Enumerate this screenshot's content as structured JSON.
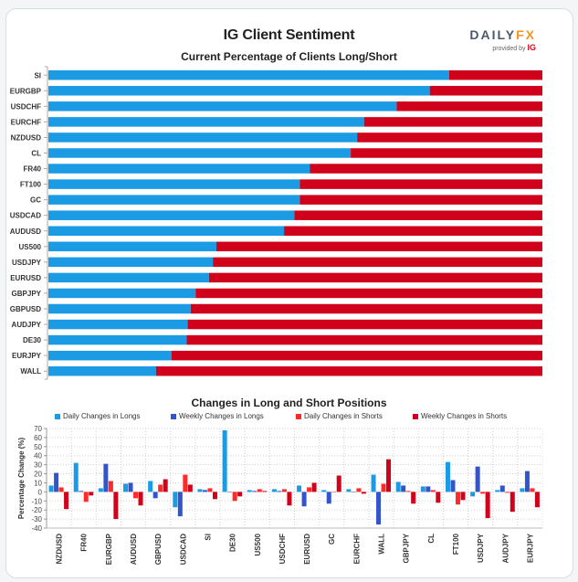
{
  "header": {
    "title": "IG Client Sentiment",
    "logo_brand_left": "DAILY",
    "logo_brand_right": "FX",
    "logo_sub": "provided by",
    "logo_sub_brand": "IG"
  },
  "colors": {
    "long": "#1b9be3",
    "short": "#d0021b",
    "daily_longs": "#1b9be3",
    "weekly_longs": "#3355cc",
    "daily_shorts": "#ff2a2a",
    "weekly_shorts": "#d0021b"
  },
  "chart_data": [
    {
      "type": "bar",
      "orientation": "horizontal-stacked",
      "title": "Current Percentage of Clients Long/Short",
      "xlabel": "",
      "ylabel": "",
      "xlim": [
        0,
        100
      ],
      "categories": [
        "SI",
        "EURGBP",
        "USDCHF",
        "EURCHF",
        "NZDUSD",
        "CL",
        "FR40",
        "FT100",
        "GC",
        "USDCAD",
        "AUDUSD",
        "US500",
        "USDJPY",
        "EURUSD",
        "GBPJPY",
        "GBPUSD",
        "AUDJPY",
        "DE30",
        "EURJPY",
        "WALL"
      ],
      "series": [
        {
          "name": "Long",
          "values": [
            81.1,
            77.2,
            70.5,
            63.9,
            62.5,
            61.2,
            52.9,
            50.9,
            50.9,
            49.8,
            47.7,
            34.0,
            33.3,
            32.5,
            29.8,
            28.8,
            28.2,
            28.0,
            24.9,
            21.8
          ]
        },
        {
          "name": "Short",
          "values": [
            18.9,
            22.8,
            29.5,
            36.1,
            37.5,
            38.8,
            47.1,
            49.1,
            49.1,
            50.2,
            52.3,
            66.0,
            66.7,
            67.5,
            70.2,
            71.2,
            71.8,
            72.0,
            75.1,
            78.2
          ]
        }
      ]
    },
    {
      "type": "bar",
      "orientation": "vertical-grouped",
      "title": "Changes in Long and Short Positions",
      "xlabel": "",
      "ylabel": "Percentage Change (%)",
      "ylim": [
        -40,
        70
      ],
      "yticks": [
        70,
        60,
        50,
        40,
        30,
        20,
        10,
        0,
        -10,
        -20,
        -30,
        -40
      ],
      "grid": true,
      "legend": "top",
      "categories": [
        "NZDUSD",
        "FR40",
        "EURGBP",
        "AUDUSD",
        "GBPUSD",
        "USDCAD",
        "SI",
        "DE30",
        "US500",
        "USDCHF",
        "EURUSD",
        "GC",
        "EURCHF",
        "WALL",
        "GBPJPY",
        "CL",
        "FT100",
        "USDJPY",
        "AUDJPY",
        "EURJPY"
      ],
      "series": [
        {
          "name": "Daily Changes in Longs",
          "values": [
            7,
            32,
            4,
            9,
            12,
            -17,
            3,
            68,
            2,
            3,
            7,
            2,
            3,
            19,
            11,
            6,
            33,
            -5,
            2,
            4
          ]
        },
        {
          "name": "Weekly Changes in Longs",
          "values": [
            21,
            1,
            31,
            10,
            -7,
            -27,
            2,
            0,
            1,
            1,
            -16,
            -13,
            0,
            -36,
            7,
            6,
            13,
            28,
            7,
            23
          ]
        },
        {
          "name": "Daily Changes in Shorts",
          "values": [
            5,
            -11,
            12,
            -7,
            8,
            19,
            4,
            -10,
            3,
            3,
            5,
            0,
            4,
            9,
            1,
            2,
            -14,
            -2,
            -1,
            4
          ]
        },
        {
          "name": "Weekly Changes in Shorts",
          "values": [
            -19,
            -4,
            -30,
            -15,
            14,
            8,
            -8,
            -5,
            1,
            -15,
            10,
            18,
            -2,
            36,
            -13,
            -12,
            -9,
            -29,
            -22,
            -17
          ]
        }
      ]
    }
  ]
}
